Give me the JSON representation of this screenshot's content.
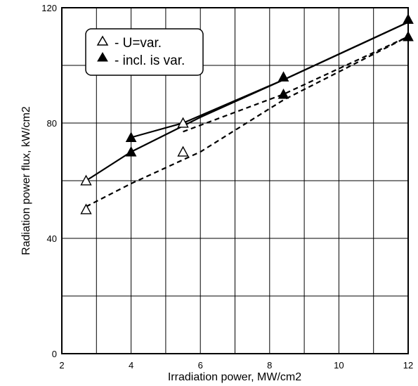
{
  "chart_data": {
    "type": "line",
    "xlabel": "Irradiation power, MW/cm2",
    "ylabel": "Radiation power flux, kW/cm2",
    "xlim": [
      2,
      12
    ],
    "ylim": [
      0,
      120
    ],
    "x_ticks": [
      "2",
      "4",
      "6",
      "8",
      "10",
      "12"
    ],
    "y_ticks": [
      "0",
      "40",
      "80",
      "120"
    ],
    "grid": true,
    "grid_x_step": 1,
    "grid_y_step": 20,
    "legend_position": "top-left",
    "series": [
      {
        "name": "- U=var.",
        "marker": "open-triangle",
        "points": [
          {
            "x": 2.7,
            "y": 60
          },
          {
            "x": 2.7,
            "y": 50
          },
          {
            "x": 5.5,
            "y": 80
          },
          {
            "x": 5.5,
            "y": 70
          }
        ],
        "lines": [
          {
            "style": "solid",
            "x": [
              2.7,
              4.0,
              6.0,
              8.4,
              12.0
            ],
            "y": [
              60,
              70,
              82,
              95,
              115
            ]
          },
          {
            "style": "dashed",
            "x": [
              2.7,
              4.0,
              6.0,
              8.4,
              12.0
            ],
            "y": [
              51,
              59,
              70,
              88,
              110
            ]
          }
        ]
      },
      {
        "name": "- incl. is var.",
        "marker": "filled-triangle",
        "points": [
          {
            "x": 4.0,
            "y": 75
          },
          {
            "x": 4.0,
            "y": 70
          },
          {
            "x": 8.4,
            "y": 96
          },
          {
            "x": 8.4,
            "y": 90
          },
          {
            "x": 12.0,
            "y": 116
          },
          {
            "x": 12.0,
            "y": 110
          }
        ],
        "lines": [
          {
            "style": "solid",
            "x": [
              4.0,
              5.5,
              8.4,
              12.0
            ],
            "y": [
              75,
              80,
              95,
              115
            ]
          },
          {
            "style": "dashed",
            "x": [
              5.5,
              8.4,
              12.0
            ],
            "y": [
              77,
              90,
              110
            ]
          }
        ]
      }
    ]
  }
}
